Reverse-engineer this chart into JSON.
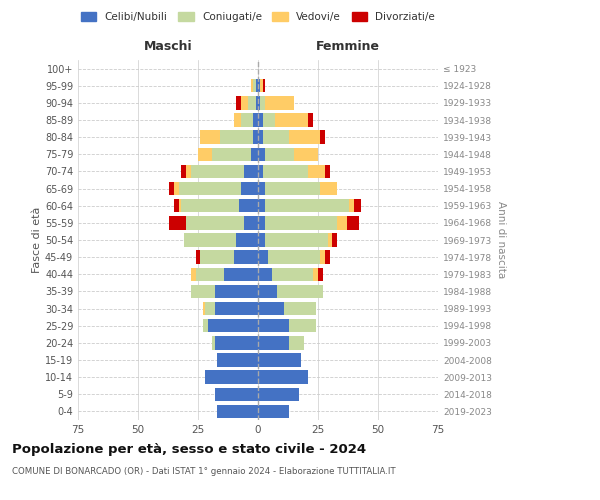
{
  "age_groups": [
    "0-4",
    "5-9",
    "10-14",
    "15-19",
    "20-24",
    "25-29",
    "30-34",
    "35-39",
    "40-44",
    "45-49",
    "50-54",
    "55-59",
    "60-64",
    "65-69",
    "70-74",
    "75-79",
    "80-84",
    "85-89",
    "90-94",
    "95-99",
    "100+"
  ],
  "birth_years": [
    "2019-2023",
    "2014-2018",
    "2009-2013",
    "2004-2008",
    "1999-2003",
    "1994-1998",
    "1989-1993",
    "1984-1988",
    "1979-1983",
    "1974-1978",
    "1969-1973",
    "1964-1968",
    "1959-1963",
    "1954-1958",
    "1949-1953",
    "1944-1948",
    "1939-1943",
    "1934-1938",
    "1929-1933",
    "1924-1928",
    "≤ 1923"
  ],
  "colors": {
    "celibi": "#4472C4",
    "coniugati": "#C5D9A0",
    "vedovi": "#FFCC66",
    "divorziati": "#CC0000"
  },
  "males": {
    "celibi": [
      17,
      18,
      22,
      17,
      18,
      21,
      18,
      18,
      14,
      10,
      9,
      6,
      8,
      7,
      6,
      3,
      2,
      2,
      1,
      1,
      0
    ],
    "coniugati": [
      0,
      0,
      0,
      0,
      1,
      2,
      4,
      10,
      12,
      14,
      22,
      24,
      24,
      26,
      22,
      16,
      14,
      5,
      3,
      1,
      0
    ],
    "vedovi": [
      0,
      0,
      0,
      0,
      0,
      0,
      1,
      0,
      2,
      0,
      0,
      0,
      1,
      2,
      2,
      6,
      8,
      3,
      3,
      1,
      0
    ],
    "divorziati": [
      0,
      0,
      0,
      0,
      0,
      0,
      0,
      0,
      0,
      2,
      0,
      7,
      2,
      2,
      2,
      0,
      0,
      0,
      2,
      0,
      0
    ]
  },
  "females": {
    "nubili": [
      13,
      17,
      21,
      18,
      13,
      13,
      11,
      8,
      6,
      4,
      3,
      3,
      3,
      3,
      2,
      3,
      2,
      2,
      1,
      1,
      0
    ],
    "coniugate": [
      0,
      0,
      0,
      0,
      6,
      11,
      13,
      19,
      17,
      22,
      26,
      30,
      35,
      23,
      19,
      12,
      11,
      5,
      2,
      0,
      0
    ],
    "vedove": [
      0,
      0,
      0,
      0,
      0,
      0,
      0,
      0,
      2,
      2,
      2,
      4,
      2,
      7,
      7,
      10,
      13,
      14,
      12,
      1,
      0
    ],
    "divorziate": [
      0,
      0,
      0,
      0,
      0,
      0,
      0,
      0,
      2,
      2,
      2,
      5,
      3,
      0,
      2,
      0,
      2,
      2,
      0,
      1,
      0
    ]
  },
  "title": "Popolazione per età, sesso e stato civile - 2024",
  "subtitle": "COMUNE DI BONARCADO (OR) - Dati ISTAT 1° gennaio 2024 - Elaborazione TUTTITALIA.IT",
  "xlabel_left": "Maschi",
  "xlabel_right": "Femmine",
  "ylabel_left": "Fasce di età",
  "ylabel_right": "Anni di nascita",
  "xlim": 75,
  "legend_labels": [
    "Celibi/Nubili",
    "Coniugati/e",
    "Vedovi/e",
    "Divorziati/e"
  ],
  "bg_color": "#FFFFFF",
  "grid_color": "#CCCCCC"
}
